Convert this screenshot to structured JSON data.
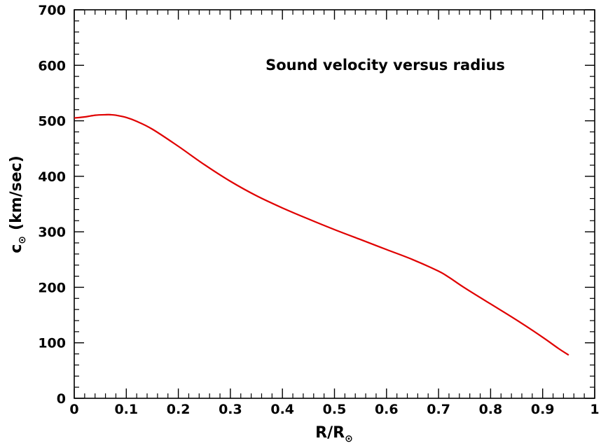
{
  "chart_data": {
    "type": "line",
    "title": "Sound velocity versus radius",
    "xlabel": {
      "main": "R/R",
      "sub": "⊙"
    },
    "ylabel": {
      "main": "c",
      "sub": "⊙",
      "unit": "(km/sec)"
    },
    "xlim": [
      0,
      1
    ],
    "ylim": [
      0,
      700
    ],
    "xticks": [
      "0",
      "0.1",
      "0.2",
      "0.3",
      "0.4",
      "0.5",
      "0.6",
      "0.7",
      "0.8",
      "0.9",
      "1"
    ],
    "yticks": [
      "0",
      "100",
      "200",
      "300",
      "400",
      "500",
      "600",
      "700"
    ],
    "grid": false,
    "series": [
      {
        "color": "#e00000",
        "x": [
          0.0,
          0.02,
          0.04,
          0.06,
          0.07,
          0.08,
          0.1,
          0.12,
          0.15,
          0.2,
          0.25,
          0.3,
          0.35,
          0.4,
          0.45,
          0.5,
          0.55,
          0.6,
          0.65,
          0.7,
          0.72,
          0.75,
          0.8,
          0.85,
          0.9,
          0.93,
          0.95
        ],
        "y": [
          505,
          507,
          510,
          511,
          511,
          510,
          506,
          499,
          485,
          454,
          421,
          391,
          365,
          343,
          323,
          304,
          286,
          268,
          250,
          229,
          218,
          199,
          170,
          141,
          110,
          90,
          78
        ]
      }
    ]
  }
}
